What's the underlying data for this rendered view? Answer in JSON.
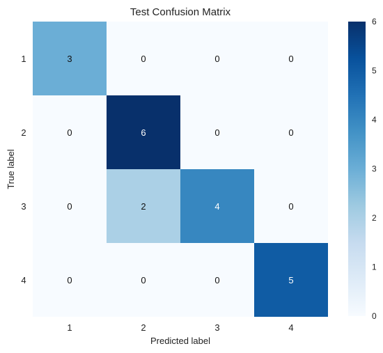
{
  "chart_data": {
    "type": "heatmap",
    "title": "Test Confusion Matrix",
    "xlabel": "Predicted label",
    "ylabel": "True label",
    "x_categories": [
      "1",
      "2",
      "3",
      "4"
    ],
    "y_categories": [
      "1",
      "2",
      "3",
      "4"
    ],
    "matrix": [
      [
        3,
        0,
        0,
        0
      ],
      [
        0,
        6,
        0,
        0
      ],
      [
        0,
        2,
        4,
        0
      ],
      [
        0,
        0,
        0,
        5
      ]
    ],
    "color_range": [
      0,
      6
    ],
    "colorbar_ticks": [
      "0",
      "1",
      "2",
      "3",
      "4",
      "5",
      "6"
    ],
    "colormap": [
      "#f7fbff",
      "#deebf7",
      "#c6dbef",
      "#9ecae1",
      "#6baed6",
      "#4292c6",
      "#2171b5",
      "#08519c",
      "#08306b"
    ]
  }
}
